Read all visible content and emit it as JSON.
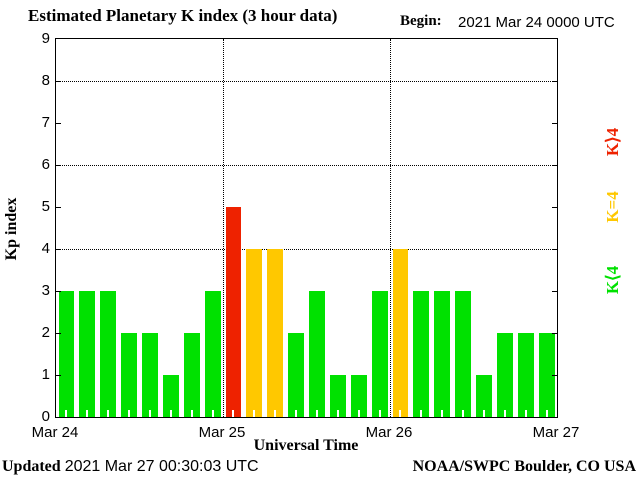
{
  "header": {
    "title": "Estimated Planetary K index (3 hour data)",
    "begin_label": "Begin:",
    "begin_value": "2021 Mar 24 0000 UTC"
  },
  "footer": {
    "updated_label": "Updated",
    "updated_value": "2021 Mar 27 00:30:03 UTC",
    "credit": "NOAA/SWPC Boulder, CO USA"
  },
  "chart_data": {
    "type": "bar",
    "title": "Estimated Planetary K index (3 hour data)",
    "xlabel": "Universal Time",
    "ylabel": "Kp index",
    "ylim": [
      0,
      9
    ],
    "y_ticks": [
      0,
      1,
      2,
      3,
      4,
      5,
      6,
      7,
      8,
      9
    ],
    "grid_y": [
      4,
      6,
      8
    ],
    "grid_on": true,
    "bin_hours": 3,
    "x_day_labels": [
      "Mar 24",
      "Mar 25",
      "Mar 26",
      "Mar 27"
    ],
    "days": [
      {
        "date": "Mar 24",
        "values": [
          3,
          3,
          3,
          2,
          2,
          1,
          2,
          3
        ]
      },
      {
        "date": "Mar 25",
        "values": [
          5,
          4,
          4,
          2,
          3,
          1,
          1,
          3
        ]
      },
      {
        "date": "Mar 26",
        "values": [
          4,
          3,
          3,
          3,
          1,
          2,
          2,
          2
        ]
      }
    ],
    "values": [
      3,
      3,
      3,
      2,
      2,
      1,
      2,
      3,
      5,
      4,
      4,
      2,
      3,
      1,
      1,
      3,
      4,
      3,
      3,
      3,
      1,
      2,
      2,
      2
    ],
    "color_rule": "green if K<4, yellow if K=4, red if K>4",
    "colors": {
      "low": "#00e100",
      "mid": "#ffc800",
      "high": "#ee2200"
    },
    "legend": [
      {
        "label": "K⟩4",
        "level": "high",
        "color": "#ee2200"
      },
      {
        "label": "K=4",
        "level": "mid",
        "color": "#ffc800"
      },
      {
        "label": "K⟨4",
        "level": "low",
        "color": "#00e100"
      }
    ]
  }
}
